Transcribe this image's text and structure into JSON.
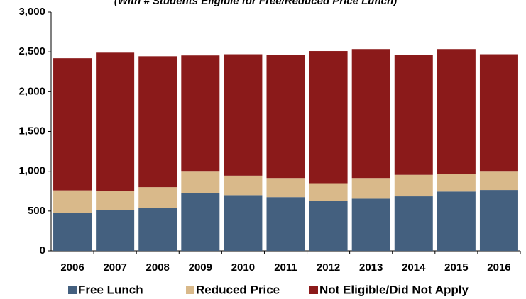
{
  "chart_data": {
    "type": "stacked-bar",
    "title": "(With # Students Eligible for Free/Reduced Price Lunch)",
    "categories": [
      "2006",
      "2007",
      "2008",
      "2009",
      "2010",
      "2011",
      "2012",
      "2013",
      "2014",
      "2015",
      "2016"
    ],
    "series": [
      {
        "name": "Free Lunch",
        "color": "#44607f",
        "values": [
          480,
          515,
          535,
          730,
          700,
          675,
          630,
          655,
          685,
          745,
          765
        ]
      },
      {
        "name": "Reduced Price",
        "color": "#d9b98a",
        "values": [
          280,
          235,
          265,
          265,
          245,
          240,
          220,
          260,
          270,
          220,
          230
        ]
      },
      {
        "name": "Not Eligible/Did Not Apply",
        "color": "#8b1a1a",
        "values": [
          1660,
          1740,
          1645,
          1460,
          1525,
          1545,
          1660,
          1620,
          1510,
          1570,
          1475
        ]
      }
    ],
    "ylim": [
      0,
      3000
    ],
    "yticks": [
      0,
      500,
      {
        "value": 1000,
        "label": "1,000"
      },
      {
        "value": 1500,
        "label": "1,500"
      },
      {
        "value": 2000,
        "label": "2,000"
      },
      {
        "value": 2500,
        "label": "2,500"
      },
      {
        "value": 3000,
        "label": "3,000"
      }
    ],
    "legend": "bottom"
  }
}
